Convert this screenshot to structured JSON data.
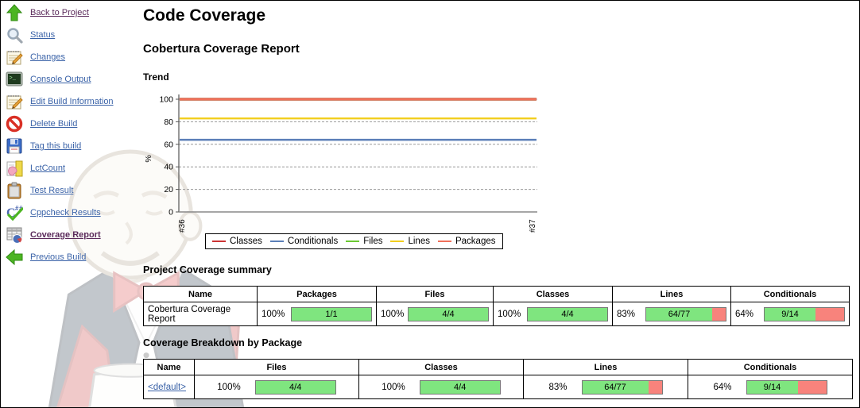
{
  "page": {
    "title": "Code Coverage",
    "subtitle": "Cobertura Coverage Report",
    "trend_heading": "Trend"
  },
  "sidebar": {
    "items": [
      {
        "label": "Back to Project",
        "icon": "up-arrow-icon"
      },
      {
        "label": "Status",
        "icon": "magnifier-icon"
      },
      {
        "label": "Changes",
        "icon": "notepad-pencil-icon"
      },
      {
        "label": "Console Output",
        "icon": "terminal-icon"
      },
      {
        "label": "Edit Build Information",
        "icon": "notepad-pencil-icon"
      },
      {
        "label": "Delete Build",
        "icon": "forbidden-icon"
      },
      {
        "label": "Tag this build",
        "icon": "floppy-save-icon"
      },
      {
        "label": "LctCount",
        "icon": "document-pie-icon"
      },
      {
        "label": "Test Result",
        "icon": "clipboard-icon"
      },
      {
        "label": "Cppcheck Results",
        "icon": "cppcheck-icon"
      },
      {
        "label": "Coverage Report",
        "icon": "spreadsheet-pie-icon"
      },
      {
        "label": "Previous Build",
        "icon": "left-arrow-icon"
      }
    ]
  },
  "chart_data": {
    "type": "line",
    "title": "",
    "xlabel": "",
    "ylabel": "%",
    "ylim": [
      0,
      100
    ],
    "yticks": [
      0,
      20,
      40,
      60,
      80,
      100
    ],
    "grid": true,
    "legend_position": "bottom",
    "categories": [
      "#36",
      "#37"
    ],
    "series": [
      {
        "name": "Classes",
        "color": "#CC3333",
        "values": [
          100,
          100
        ]
      },
      {
        "name": "Conditionals",
        "color": "#5B7FB8",
        "values": [
          64,
          64
        ]
      },
      {
        "name": "Files",
        "color": "#6BC832",
        "values": [
          100,
          100
        ]
      },
      {
        "name": "Lines",
        "color": "#F2CE1E",
        "values": [
          83,
          83
        ]
      },
      {
        "name": "Packages",
        "color": "#F0705A",
        "values": [
          100,
          100
        ]
      }
    ]
  },
  "summary": {
    "heading": "Project Coverage summary",
    "columns": [
      "Name",
      "Packages",
      "Files",
      "Classes",
      "Lines",
      "Conditionals"
    ],
    "rows": [
      {
        "name": "Cobertura Coverage Report",
        "metrics": [
          {
            "percent": "100%",
            "ratio": "1/1",
            "value": 100
          },
          {
            "percent": "100%",
            "ratio": "4/4",
            "value": 100
          },
          {
            "percent": "100%",
            "ratio": "4/4",
            "value": 100
          },
          {
            "percent": "83%",
            "ratio": "64/77",
            "value": 83
          },
          {
            "percent": "64%",
            "ratio": "9/14",
            "value": 64
          }
        ]
      }
    ]
  },
  "breakdown": {
    "heading": "Coverage Breakdown by Package",
    "columns": [
      "Name",
      "Files",
      "Classes",
      "Lines",
      "Conditionals"
    ],
    "rows": [
      {
        "name": "<default>",
        "metrics": [
          {
            "percent": "100%",
            "ratio": "4/4",
            "value": 100
          },
          {
            "percent": "100%",
            "ratio": "4/4",
            "value": 100
          },
          {
            "percent": "83%",
            "ratio": "64/77",
            "value": 83
          },
          {
            "percent": "64%",
            "ratio": "9/14",
            "value": 64
          }
        ]
      }
    ]
  },
  "colors": {
    "bar_green": "#7FE57F",
    "bar_red": "#F8837C",
    "link": "#3B63A8",
    "visited_link": "#5B2B5B"
  }
}
